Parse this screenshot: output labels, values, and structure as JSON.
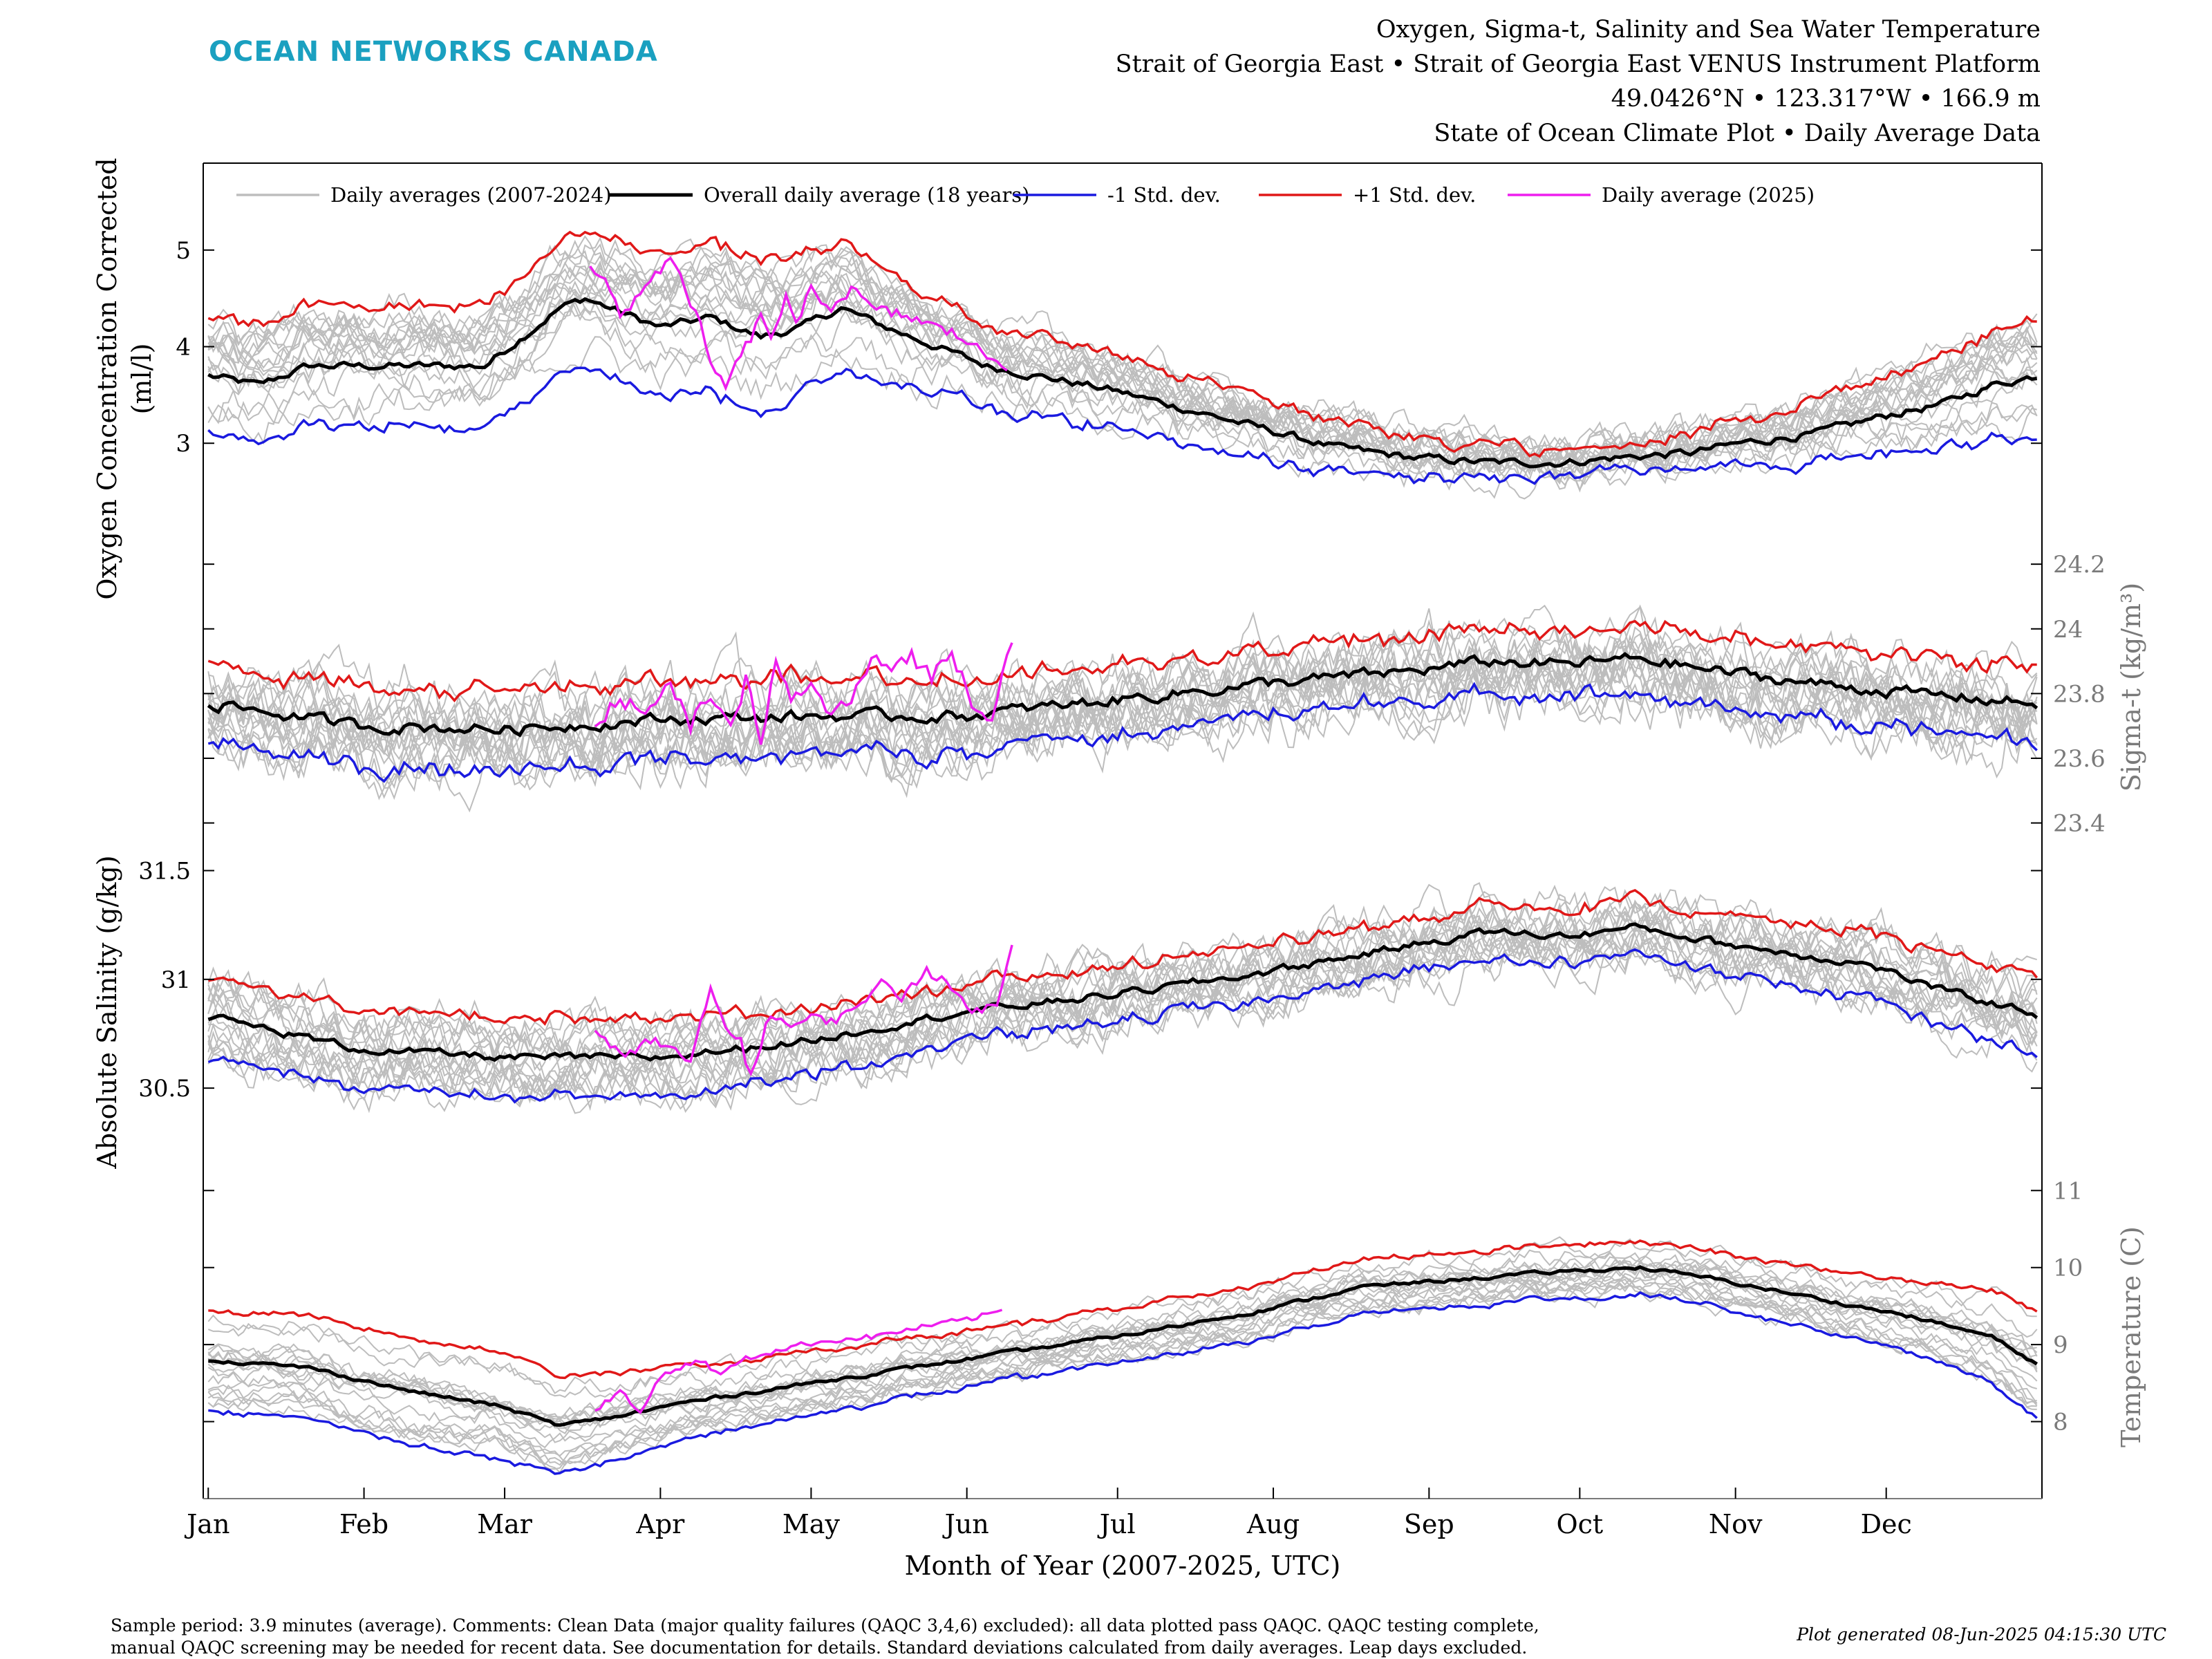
{
  "header": {
    "logo": "OCEAN NETWORKS CANADA",
    "title_lines": [
      "Oxygen, Sigma-t, Salinity and Sea Water Temperature",
      "Strait of Georgia East • Strait of Georgia East VENUS Instrument Platform",
      "49.0426°N • 123.317°W • 166.9 m",
      "State of Ocean Climate Plot • Daily Average Data"
    ]
  },
  "footer": {
    "note_line1": "Sample period: 3.9 minutes (average). Comments: Clean Data (major quality failures (QAQC 3,4,6) excluded): all data plotted pass QAQC. QAQC testing complete,",
    "note_line2": "manual QAQC screening may be needed for recent data. See documentation for details. Standard deviations calculated from daily averages. Leap days excluded.",
    "generated": "Plot generated 08-Jun-2025 04:15:30 UTC"
  },
  "chart_data": {
    "type": "line",
    "xlabel": "Month of Year (2007-2025, UTC)",
    "months": [
      "Jan",
      "Feb",
      "Mar",
      "Apr",
      "May",
      "Jun",
      "Jul",
      "Aug",
      "Sep",
      "Oct",
      "Nov",
      "Dec"
    ],
    "xlim_day_of_year": [
      -1,
      365
    ],
    "legend": {
      "placement": "top",
      "entries": [
        {
          "label": "Daily averages (2007-2024)",
          "color": "#bdbdbd"
        },
        {
          "label": "Overall daily average (18 years)",
          "color": "#000000"
        },
        {
          "label": "-1 Std. dev.",
          "color": "#1a1adf"
        },
        {
          "label": "+1 Std. dev.",
          "color": "#e01818"
        },
        {
          "label": "Daily average (2025)",
          "color": "#ee1eee"
        }
      ]
    },
    "colors": {
      "mean": "#000000",
      "minus_sd": "#1a1adf",
      "plus_sd": "#e01818",
      "current": "#ee1eee",
      "years": "#bdbdbd",
      "grey_axis": "#7a7a7a"
    },
    "panels": [
      {
        "name": "oxygen",
        "ylabel_line1": "Oxygen Concentration Corrected",
        "ylabel_line2": "(ml/l)",
        "axis_side": "left",
        "ylim": [
          2.15,
          5.9
        ],
        "ticks": [
          3,
          4,
          5
        ],
        "tick_labels": [
          "3",
          "4",
          "5"
        ],
        "mean_anchors": [
          [
            0,
            3.7
          ],
          [
            10,
            3.6
          ],
          [
            20,
            3.8
          ],
          [
            30,
            3.8
          ],
          [
            45,
            3.8
          ],
          [
            55,
            3.8
          ],
          [
            60,
            4.0
          ],
          [
            65,
            4.2
          ],
          [
            70,
            4.4
          ],
          [
            75,
            4.5
          ],
          [
            80,
            4.4
          ],
          [
            90,
            4.2
          ],
          [
            100,
            4.3
          ],
          [
            110,
            4.1
          ],
          [
            118,
            4.2
          ],
          [
            126,
            4.4
          ],
          [
            135,
            4.2
          ],
          [
            145,
            4.0
          ],
          [
            155,
            3.8
          ],
          [
            165,
            3.7
          ],
          [
            180,
            3.55
          ],
          [
            195,
            3.35
          ],
          [
            210,
            3.15
          ],
          [
            225,
            2.95
          ],
          [
            240,
            2.85
          ],
          [
            255,
            2.8
          ],
          [
            270,
            2.8
          ],
          [
            280,
            2.85
          ],
          [
            295,
            2.9
          ],
          [
            305,
            3.0
          ],
          [
            320,
            3.1
          ],
          [
            335,
            3.3
          ],
          [
            345,
            3.4
          ],
          [
            355,
            3.6
          ],
          [
            364,
            3.7
          ]
        ],
        "sd": [
          [
            0,
            0.6
          ],
          [
            60,
            0.65
          ],
          [
            110,
            0.8
          ],
          [
            150,
            0.45
          ],
          [
            200,
            0.35
          ],
          [
            250,
            0.18
          ],
          [
            280,
            0.12
          ],
          [
            310,
            0.25
          ],
          [
            340,
            0.45
          ],
          [
            364,
            0.6
          ]
        ],
        "current_anchors": [
          [
            76,
            4.8
          ],
          [
            80,
            4.6
          ],
          [
            82,
            4.3
          ],
          [
            88,
            4.7
          ],
          [
            92,
            4.9
          ],
          [
            95,
            4.6
          ],
          [
            98,
            4.2
          ],
          [
            100,
            3.8
          ],
          [
            103,
            3.6
          ],
          [
            107,
            4.0
          ],
          [
            110,
            4.3
          ],
          [
            112,
            4.1
          ],
          [
            115,
            4.5
          ],
          [
            117,
            4.2
          ],
          [
            120,
            4.6
          ],
          [
            124,
            4.4
          ],
          [
            128,
            4.6
          ],
          [
            132,
            4.4
          ],
          [
            136,
            4.35
          ],
          [
            140,
            4.3
          ],
          [
            145,
            4.2
          ],
          [
            150,
            4.1
          ],
          [
            155,
            3.9
          ],
          [
            159,
            3.8
          ]
        ],
        "current_range": [
          76,
          159
        ],
        "noise": [
          0.12,
          0.07
        ]
      },
      {
        "name": "sigma_t",
        "ylabel_line1": "Sigma-t (kg/m³)",
        "axis_side": "right",
        "ylim": [
          23.32,
          24.32
        ],
        "ticks": [
          23.4,
          23.6,
          23.8,
          24.0,
          24.2
        ],
        "tick_labels": [
          "23.4",
          "23.6",
          "23.8",
          "24",
          "24.2"
        ],
        "mean_anchors": [
          [
            0,
            23.77
          ],
          [
            30,
            23.7
          ],
          [
            60,
            23.69
          ],
          [
            90,
            23.72
          ],
          [
            120,
            23.73
          ],
          [
            150,
            23.73
          ],
          [
            180,
            23.78
          ],
          [
            210,
            23.83
          ],
          [
            240,
            23.87
          ],
          [
            255,
            23.9
          ],
          [
            270,
            23.89
          ],
          [
            285,
            23.91
          ],
          [
            300,
            23.87
          ],
          [
            320,
            23.83
          ],
          [
            340,
            23.8
          ],
          [
            364,
            23.77
          ]
        ],
        "sd": [
          [
            0,
            0.12
          ],
          [
            120,
            0.12
          ],
          [
            200,
            0.1
          ],
          [
            270,
            0.1
          ],
          [
            364,
            0.12
          ]
        ],
        "current_anchors": [
          [
            77,
            23.7
          ],
          [
            82,
            23.78
          ],
          [
            88,
            23.75
          ],
          [
            92,
            23.82
          ],
          [
            96,
            23.7
          ],
          [
            100,
            23.8
          ],
          [
            104,
            23.68
          ],
          [
            107,
            23.84
          ],
          [
            110,
            23.66
          ],
          [
            113,
            23.9
          ],
          [
            116,
            23.78
          ],
          [
            120,
            23.82
          ],
          [
            124,
            23.74
          ],
          [
            128,
            23.78
          ],
          [
            132,
            23.9
          ],
          [
            136,
            23.88
          ],
          [
            140,
            23.92
          ],
          [
            144,
            23.85
          ],
          [
            148,
            23.93
          ],
          [
            152,
            23.78
          ],
          [
            156,
            23.72
          ],
          [
            160,
            23.98
          ]
        ],
        "current_range": [
          77,
          160
        ],
        "noise": [
          0.06,
          0.03
        ]
      },
      {
        "name": "salinity",
        "ylabel_line1": "Absolute Salinity (g/kg)",
        "axis_side": "left",
        "ylim": [
          30.1,
          31.6
        ],
        "ticks": [
          30.5,
          31.0,
          31.5
        ],
        "tick_labels": [
          "30.5",
          "31",
          "31.5"
        ],
        "mean_anchors": [
          [
            0,
            30.83
          ],
          [
            30,
            30.68
          ],
          [
            60,
            30.64
          ],
          [
            90,
            30.64
          ],
          [
            120,
            30.72
          ],
          [
            150,
            30.85
          ],
          [
            180,
            30.93
          ],
          [
            210,
            31.03
          ],
          [
            240,
            31.16
          ],
          [
            255,
            31.22
          ],
          [
            270,
            31.2
          ],
          [
            285,
            31.24
          ],
          [
            300,
            31.17
          ],
          [
            330,
            31.07
          ],
          [
            345,
            30.95
          ],
          [
            364,
            30.84
          ]
        ],
        "sd": [
          [
            0,
            0.18
          ],
          [
            90,
            0.18
          ],
          [
            150,
            0.13
          ],
          [
            240,
            0.12
          ],
          [
            300,
            0.13
          ],
          [
            364,
            0.18
          ]
        ],
        "current_anchors": [
          [
            77,
            30.75
          ],
          [
            82,
            30.65
          ],
          [
            88,
            30.72
          ],
          [
            92,
            30.68
          ],
          [
            96,
            30.62
          ],
          [
            100,
            30.95
          ],
          [
            103,
            30.78
          ],
          [
            106,
            30.72
          ],
          [
            108,
            30.55
          ],
          [
            112,
            30.85
          ],
          [
            116,
            30.78
          ],
          [
            120,
            30.82
          ],
          [
            126,
            30.82
          ],
          [
            130,
            30.9
          ],
          [
            134,
            30.98
          ],
          [
            138,
            30.92
          ],
          [
            143,
            31.05
          ],
          [
            148,
            30.95
          ],
          [
            153,
            30.85
          ],
          [
            157,
            30.88
          ],
          [
            160,
            31.18
          ]
        ],
        "current_range": [
          77,
          160
        ],
        "noise": [
          0.07,
          0.03
        ]
      },
      {
        "name": "temperature",
        "ylabel_line1": "Temperature (C)",
        "axis_side": "right",
        "ylim": [
          7.0,
          11.2
        ],
        "ticks": [
          8,
          9,
          10,
          11
        ],
        "tick_labels": [
          "8",
          "9",
          "10",
          "11"
        ],
        "mean_anchors": [
          [
            0,
            8.8
          ],
          [
            20,
            8.7
          ],
          [
            40,
            8.4
          ],
          [
            58,
            8.2
          ],
          [
            70,
            7.95
          ],
          [
            80,
            8.05
          ],
          [
            95,
            8.25
          ],
          [
            115,
            8.45
          ],
          [
            135,
            8.65
          ],
          [
            160,
            8.9
          ],
          [
            185,
            9.15
          ],
          [
            210,
            9.45
          ],
          [
            230,
            9.75
          ],
          [
            250,
            9.85
          ],
          [
            270,
            9.95
          ],
          [
            285,
            10.0
          ],
          [
            300,
            9.85
          ],
          [
            320,
            9.6
          ],
          [
            340,
            9.35
          ],
          [
            355,
            9.1
          ],
          [
            364,
            8.75
          ]
        ],
        "sd": [
          [
            0,
            0.65
          ],
          [
            60,
            0.7
          ],
          [
            100,
            0.45
          ],
          [
            160,
            0.35
          ],
          [
            230,
            0.35
          ],
          [
            300,
            0.35
          ],
          [
            340,
            0.45
          ],
          [
            364,
            0.7
          ]
        ],
        "current_anchors": [
          [
            77,
            8.15
          ],
          [
            82,
            8.4
          ],
          [
            86,
            8.1
          ],
          [
            90,
            8.6
          ],
          [
            94,
            8.7
          ],
          [
            98,
            8.8
          ],
          [
            102,
            8.6
          ],
          [
            106,
            8.8
          ],
          [
            112,
            8.9
          ],
          [
            118,
            9.0
          ],
          [
            124,
            9.05
          ],
          [
            132,
            9.1
          ],
          [
            140,
            9.2
          ],
          [
            148,
            9.3
          ],
          [
            153,
            9.35
          ],
          [
            158,
            9.45
          ]
        ],
        "current_range": [
          77,
          158
        ],
        "noise": [
          0.08,
          0.04
        ]
      }
    ]
  }
}
